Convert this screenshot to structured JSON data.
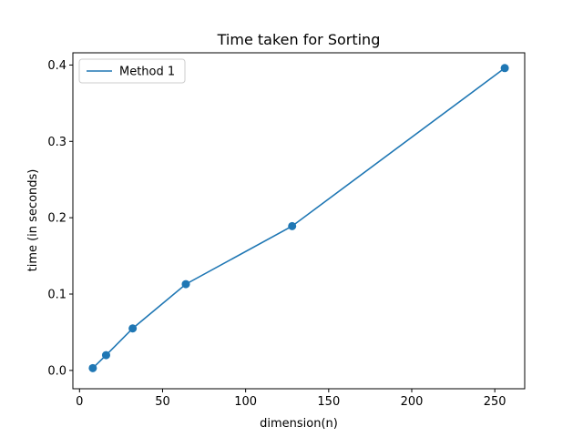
{
  "chart_data": {
    "type": "line",
    "title": "Time taken for Sorting",
    "xlabel": "dimension(n)",
    "ylabel": "time (in seconds)",
    "xlim": [
      -4,
      268
    ],
    "ylim": [
      -0.024,
      0.416
    ],
    "xticks": [
      0,
      50,
      100,
      150,
      200,
      250
    ],
    "xtick_labels": [
      "0",
      "50",
      "100",
      "150",
      "200",
      "250"
    ],
    "yticks": [
      0.0,
      0.1,
      0.2,
      0.3,
      0.4
    ],
    "ytick_labels": [
      "0.0",
      "0.1",
      "0.2",
      "0.3",
      "0.4"
    ],
    "grid": false,
    "legend_position": "top-left",
    "series": [
      {
        "name": "Method 1",
        "color": "#1f77b4",
        "marker": "circle",
        "x": [
          8,
          16,
          32,
          64,
          128,
          256
        ],
        "y": [
          0.003,
          0.02,
          0.055,
          0.113,
          0.189,
          0.396
        ]
      }
    ]
  }
}
